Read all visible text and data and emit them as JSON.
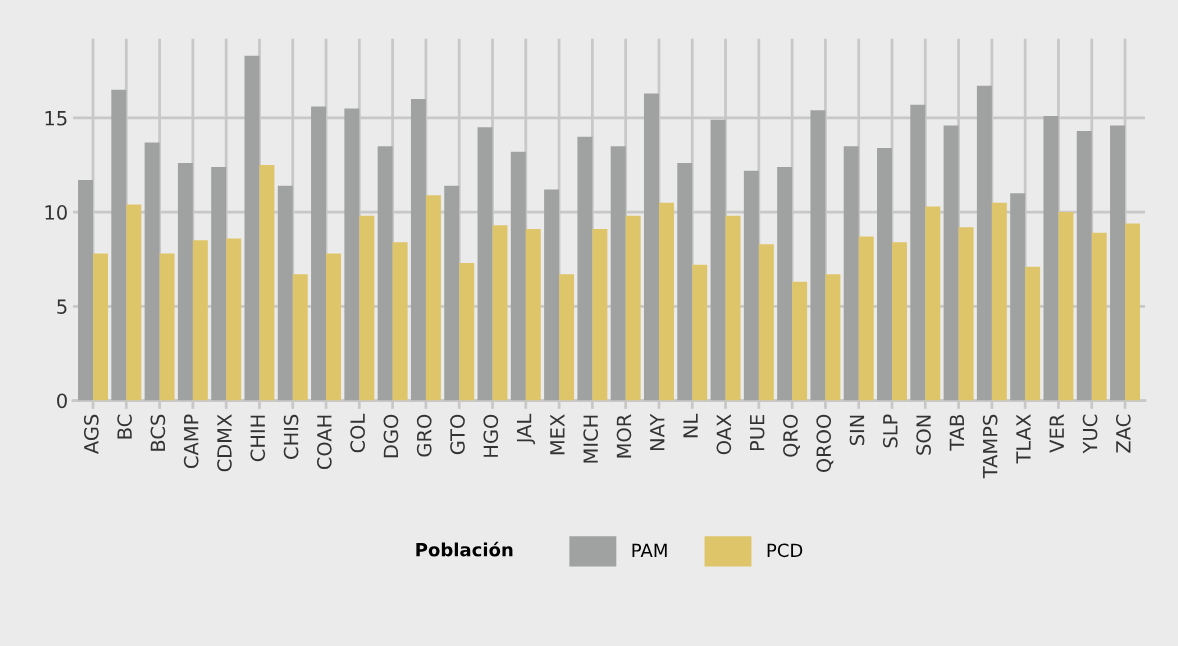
{
  "chart_data": {
    "type": "bar",
    "categories": [
      "AGS",
      "BC",
      "BCS",
      "CAMP",
      "CDMX",
      "CHIH",
      "CHIS",
      "COAH",
      "COL",
      "DGO",
      "GRO",
      "GTO",
      "HGO",
      "JAL",
      "MEX",
      "MICH",
      "MOR",
      "NAY",
      "NL",
      "OAX",
      "PUE",
      "QRO",
      "QROO",
      "SIN",
      "SLP",
      "SON",
      "TAB",
      "TAMPS",
      "TLAX",
      "VER",
      "YUC",
      "ZAC"
    ],
    "series": [
      {
        "name": "PAM",
        "color": "#a0a2a1",
        "values": [
          11.7,
          16.5,
          13.7,
          12.6,
          12.4,
          18.3,
          11.4,
          15.6,
          15.5,
          13.5,
          16.0,
          11.4,
          14.5,
          13.2,
          11.2,
          14.0,
          13.5,
          16.3,
          12.6,
          14.9,
          12.2,
          12.4,
          15.4,
          13.5,
          13.4,
          15.7,
          14.6,
          16.7,
          11.0,
          15.1,
          14.3,
          14.6
        ]
      },
      {
        "name": "PCD",
        "color": "#dfc56a",
        "values": [
          7.8,
          10.4,
          7.8,
          8.5,
          8.6,
          12.5,
          6.7,
          7.8,
          9.8,
          8.4,
          10.9,
          7.3,
          9.3,
          9.1,
          6.7,
          9.1,
          9.8,
          10.5,
          7.2,
          9.8,
          8.3,
          6.3,
          6.7,
          8.7,
          8.4,
          10.3,
          9.2,
          10.5,
          7.1,
          10.0,
          8.9,
          9.4
        ]
      }
    ],
    "legend_title": "Población",
    "legend": "bottom",
    "ylim": [
      0,
      19.2
    ],
    "yticks": [
      0,
      5,
      10,
      15
    ],
    "grid": true
  }
}
